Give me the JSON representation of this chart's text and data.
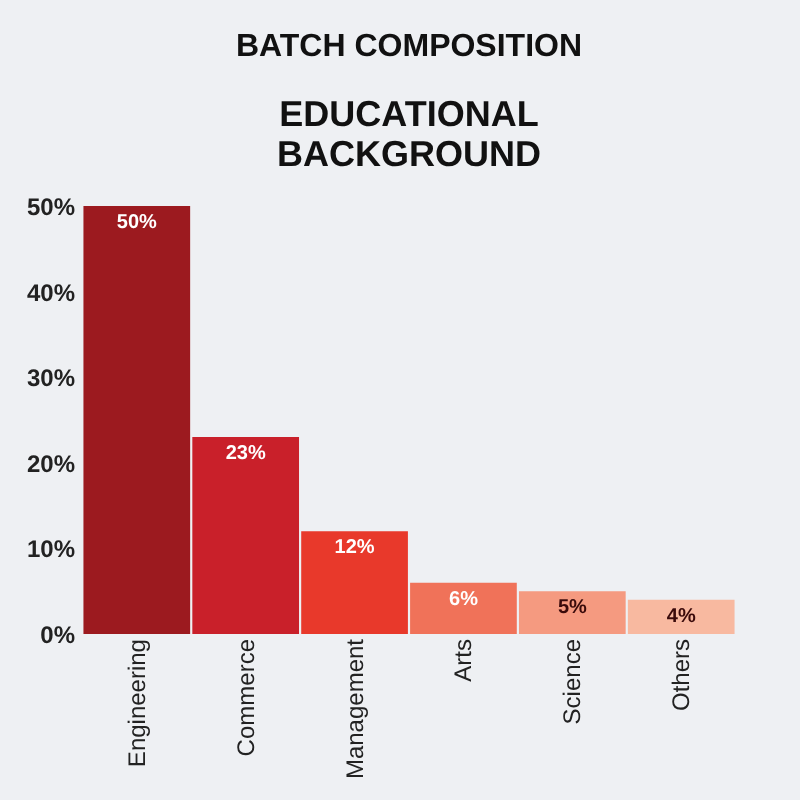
{
  "chart_data": {
    "type": "bar",
    "title": "BATCH COMPOSITION",
    "subtitle": "EDUCATIONAL BACKGROUND",
    "categories": [
      "Engineering",
      "Commerce",
      "Management",
      "Arts",
      "Science",
      "Others"
    ],
    "values": [
      50,
      23,
      12,
      6,
      5,
      4
    ],
    "value_labels": [
      "50%",
      "23%",
      "12%",
      "6%",
      "5%",
      "4%"
    ],
    "colors": [
      "#9c1a1f",
      "#c9202a",
      "#e8392b",
      "#f07259",
      "#f59a80",
      "#f8b9a0"
    ],
    "ylim": [
      0,
      50
    ],
    "yticks": [
      {
        "value": 0,
        "label": "0%"
      },
      {
        "value": 10,
        "label": "10%"
      },
      {
        "value": 20,
        "label": "20%"
      },
      {
        "value": 30,
        "label": "30%"
      },
      {
        "value": 40,
        "label": "40%"
      },
      {
        "value": 50,
        "label": "50%"
      }
    ],
    "grid": false
  }
}
